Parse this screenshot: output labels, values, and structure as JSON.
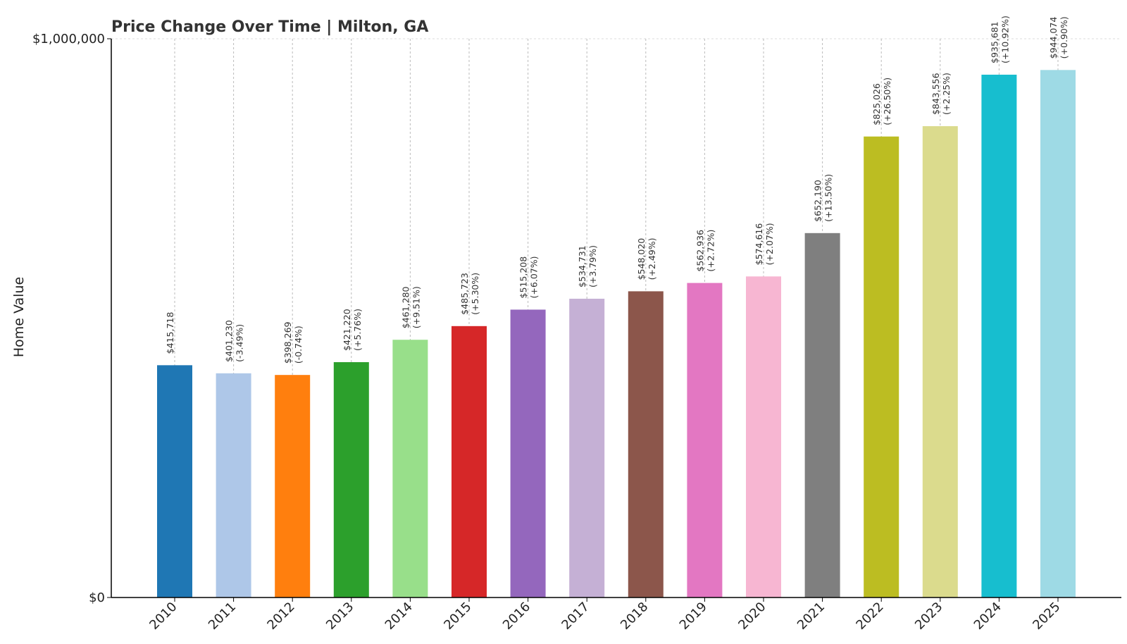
{
  "chart_data": {
    "type": "bar",
    "title": "Price Change Over Time | Milton, GA",
    "xlabel": "",
    "ylabel": "Home Value",
    "ylim": [
      0,
      1000000
    ],
    "yticks": [
      {
        "value": 0,
        "label": "$0"
      },
      {
        "value": 1000000,
        "label": "$1,000,000"
      }
    ],
    "grid": "vertical dashed",
    "categories": [
      "2010",
      "2011",
      "2012",
      "2013",
      "2014",
      "2015",
      "2016",
      "2017",
      "2018",
      "2019",
      "2020",
      "2021",
      "2022",
      "2023",
      "2024",
      "2025"
    ],
    "values": [
      415718,
      401230,
      398269,
      421220,
      461280,
      485723,
      515208,
      534731,
      548020,
      562936,
      574616,
      652190,
      825026,
      843556,
      935681,
      944074
    ],
    "value_labels": [
      "$415,718",
      "$401,230",
      "$398,269",
      "$421,220",
      "$461,280",
      "$485,723",
      "$515,208",
      "$534,731",
      "$548,020",
      "$562,936",
      "$574,616",
      "$652,190",
      "$825,026",
      "$843,556",
      "$935,681",
      "$944,074"
    ],
    "change_labels": [
      "",
      "(-3.49%)",
      "(-0.74%)",
      "(+5.76%)",
      "(+9.51%)",
      "(+5.30%)",
      "(+6.07%)",
      "(+3.79%)",
      "(+2.49%)",
      "(+2.72%)",
      "(+2.07%)",
      "(+13.50%)",
      "(+26.50%)",
      "(+2.25%)",
      "(+10.92%)",
      "(+0.90%)"
    ],
    "colors": [
      "#1f77b4",
      "#aec7e8",
      "#ff7f0e",
      "#2ca02c",
      "#98df8a",
      "#d62728",
      "#9467bd",
      "#c5b0d5",
      "#8c564b",
      "#e377c2",
      "#f7b6d2",
      "#7f7f7f",
      "#bcbd22",
      "#dbdb8d",
      "#17becf",
      "#9edae5"
    ]
  }
}
